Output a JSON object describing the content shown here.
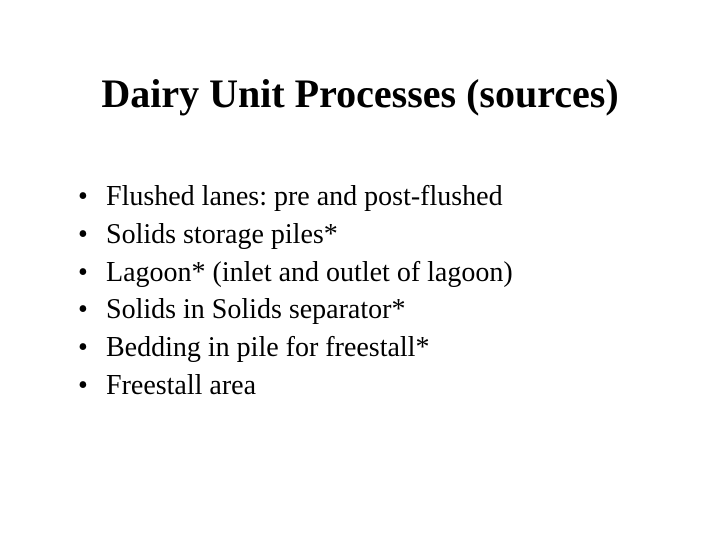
{
  "slide": {
    "title": "Dairy Unit Processes (sources)",
    "title_fontsize": 40,
    "title_weight": "bold",
    "body_fontsize": 28,
    "font_family": "Times New Roman",
    "background_color": "#ffffff",
    "text_color": "#000000",
    "bullet_glyph": "•",
    "bullets": [
      "Flushed lanes: pre and post-flushed",
      "Solids storage piles*",
      "Lagoon* (inlet and outlet of lagoon)",
      "Solids in Solids separator*",
      "Bedding in pile for freestall*",
      "Freestall area"
    ]
  }
}
